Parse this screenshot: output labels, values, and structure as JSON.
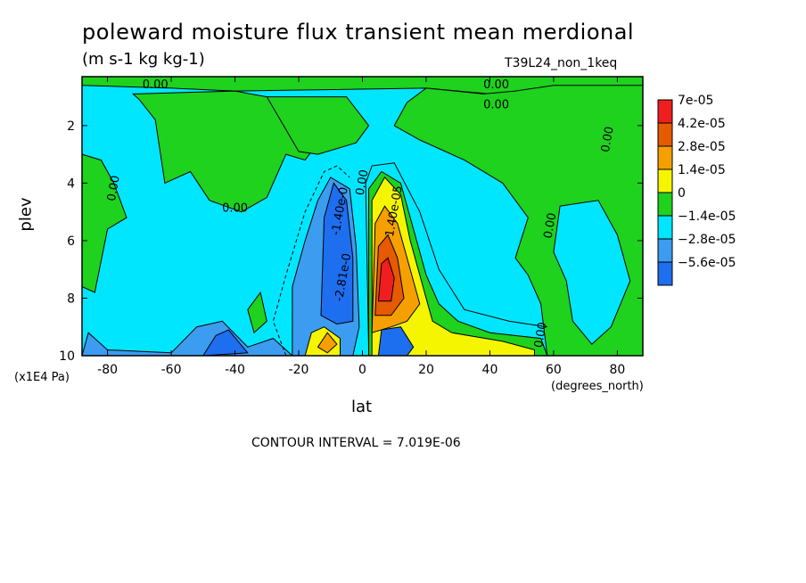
{
  "header": {
    "title": "poleward moisture flux transient mean merdional",
    "units": "(m s-1 kg kg-1)",
    "run_id": "T39L24_non_1keq"
  },
  "footer": {
    "contour_interval": "CONTOUR INTERVAL = 7.019E-06"
  },
  "colors": {
    "c_neg56": "#1e6ef0",
    "c_neg28": "#3c9cf0",
    "c_neg14": "#00e6ff",
    "c_zero": "#1ed21e",
    "c_pos14": "#f5f500",
    "c_pos28": "#f5a000",
    "c_pos42": "#e65a00",
    "c_pos70": "#f01e1e"
  },
  "chart_data": {
    "type": "heatmap",
    "title": "poleward moisture flux transient mean merdional",
    "xlabel": "lat",
    "xunits": "(degrees_north)",
    "ylabel": "plev",
    "yunits": "(x1E4 Pa)",
    "xlim": [
      -88,
      88
    ],
    "ylim": [
      10,
      0.3
    ],
    "x_ticks": [
      -80,
      -60,
      -40,
      -20,
      0,
      20,
      40,
      60,
      80
    ],
    "x_tick_labels": [
      "-80",
      "-60",
      "-40",
      "-20",
      "0",
      "20",
      "40",
      "60",
      "80"
    ],
    "y_ticks": [
      2,
      4,
      6,
      8,
      10
    ],
    "y_tick_labels": [
      "2",
      "4",
      "6",
      "8",
      "10"
    ],
    "legend": {
      "placement": "right",
      "labels": [
        "7e-05",
        "4.2e-05",
        "2.8e-05",
        "1.4e-05",
        "0",
        "−1.4e-05",
        "−2.8e-05",
        "−5.6e-05"
      ]
    },
    "contour_labels": [
      {
        "text": "0.00",
        "lat": -65,
        "plev": 0.7
      },
      {
        "text": "0.00",
        "lat": 42,
        "plev": 0.7
      },
      {
        "text": "0.00",
        "lat": 42,
        "plev": 1.4
      },
      {
        "text": "0.00",
        "lat": 78,
        "plev": 2.5
      },
      {
        "text": "0.00",
        "lat": -77,
        "plev": 4.2
      },
      {
        "text": "0.00",
        "lat": -40,
        "plev": 5.0
      },
      {
        "text": "0.00",
        "lat": 1,
        "plev": 4.0
      },
      {
        "text": "0.00",
        "lat": 60,
        "plev": 5.5
      },
      {
        "text": "0.00",
        "lat": 57,
        "plev": 9.3
      },
      {
        "text": "-1.40e-0",
        "lat": -6,
        "plev": 5.0
      },
      {
        "text": "-2.81e-0",
        "lat": -5,
        "plev": 7.3
      },
      {
        "text": "1.40e-05",
        "lat": 11,
        "plev": 5.0
      }
    ],
    "regions": [
      {
        "name": "background",
        "level": "-1.4e-05 to 0"
      },
      {
        "name": "positive-core",
        "level": "4.2e-05 to 7e-05",
        "lat_range": [
          3,
          12
        ],
        "plev_range": [
          6.3,
          8.5
        ]
      },
      {
        "name": "negative-core",
        "level": "-5.6e-05 to -2.8e-05",
        "lat_range": [
          -14,
          -2
        ],
        "plev_range": [
          4,
          8.8
        ]
      }
    ]
  }
}
